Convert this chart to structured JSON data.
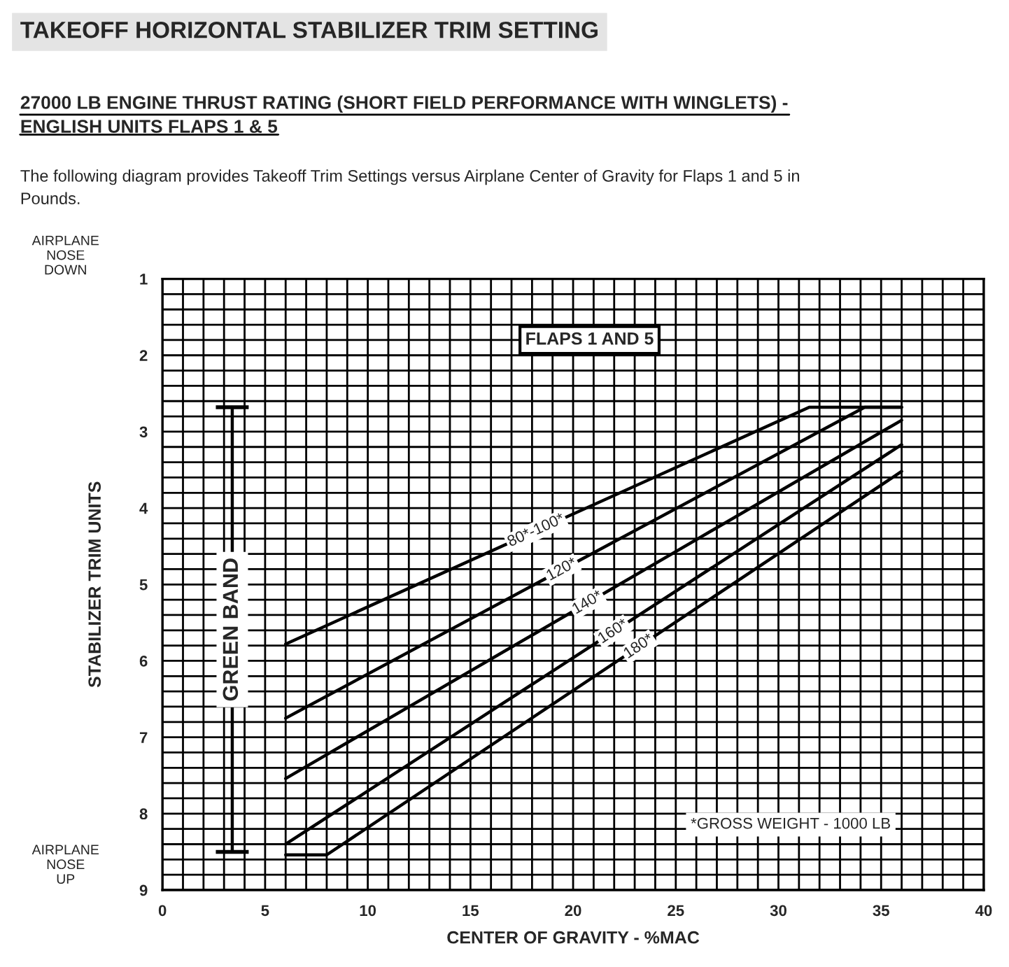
{
  "chart_data": {
    "type": "line",
    "title": "TAKEOFF HORIZONTAL STABILIZER TRIM SETTING",
    "subtitle": "27000 LB ENGINE THRUST RATING (SHORT FIELD PERFORMANCE WITH WINGLETS) -\nENGLISH UNITS FLAPS 1 & 5",
    "xlabel": "CENTER OF GRAVITY - %MAC",
    "ylabel": "STABILIZER TRIM UNITS",
    "annotations": [
      "The following diagram provides Takeoff Trim Settings versus Airplane Center of Gravity for Flaps 1 and 5 in\nPounds.",
      "AIRPLANE\nNOSE\nDOWN",
      "AIRPLANE\nNOSE\nUP",
      "FLAPS 1 AND 5",
      "*GROSS WEIGHT - 1000 LB"
    ],
    "series": [
      {
        "name": "80*-100*",
        "color": "#000000",
        "x": [
          6,
          31.5,
          36
        ],
        "values": [
          5.78,
          2.68,
          2.68
        ]
      },
      {
        "name": "120*",
        "color": "#000000",
        "x": [
          6,
          34.2,
          36
        ],
        "values": [
          6.75,
          2.68,
          2.68
        ]
      },
      {
        "name": "140*",
        "color": "#000000",
        "x": [
          6,
          36
        ],
        "values": [
          7.54,
          2.85
        ]
      },
      {
        "name": "160*",
        "color": "#000000",
        "x": [
          6,
          36
        ],
        "values": [
          8.4,
          3.17
        ]
      },
      {
        "name": "180*",
        "color": "#000000",
        "x": [
          6,
          8,
          36
        ],
        "values": [
          8.54,
          8.54,
          3.52
        ]
      },
      {
        "name": "GREEN BAND",
        "color": "#000000",
        "x": [
          3.4,
          3.4
        ],
        "values": [
          2.68,
          8.5
        ],
        "xerrors": [
          0.8,
          0.8
        ]
      }
    ],
    "xlim": [
      0,
      40
    ],
    "xticks": [
      0,
      5,
      10,
      15,
      20,
      25,
      30,
      35,
      40
    ],
    "ylim": [
      9,
      1
    ],
    "yticks": [
      1,
      2,
      3,
      4,
      5,
      6,
      7,
      8,
      9
    ],
    "grid": true,
    "line_style": "solid",
    "marker": "none"
  }
}
